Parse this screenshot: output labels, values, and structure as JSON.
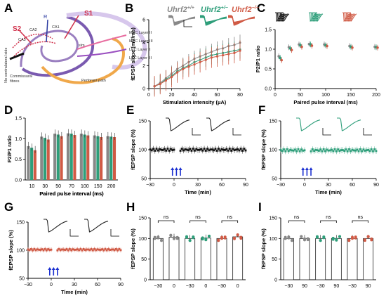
{
  "colors": {
    "wt": "#888888",
    "het": "#2e9e7a",
    "ko": "#d05a45",
    "hfs": "#1a2fd0",
    "black": "#111111"
  },
  "panel_a": {
    "label": "A",
    "labels": {
      "s1": "S1",
      "s2": "S2",
      "r": "R",
      "ca1": "CA1",
      "ca2": "CA2",
      "ca3": "CA3",
      "mec2": "MEC Layer II",
      "mec3": "MEC Layer III",
      "lec2": "LEC Layer II",
      "lec3": "LEC Layer III",
      "slm": "slm",
      "pp": "Perforant path",
      "comm1": "Commissural",
      "comm2": "fibres",
      "contra": "No contralateral side"
    }
  },
  "panel_b": {
    "label": "B",
    "legend": [
      {
        "base": "Uhrf2",
        "sup": "+/+",
        "color": "#888888"
      },
      {
        "base": "Uhrf2",
        "sup": "+/−",
        "color": "#2e9e7a"
      },
      {
        "base": "Uhrf2",
        "sup": "−/−",
        "color": "#d05a45"
      }
    ]
  },
  "panel_c": {
    "label": "C"
  },
  "panel_d": {
    "label": "D"
  },
  "panel_e": {
    "label": "E"
  },
  "panel_f": {
    "label": "F"
  },
  "panel_g": {
    "label": "G"
  },
  "panel_h": {
    "label": "H"
  },
  "panel_i": {
    "label": "I"
  },
  "chart_data": [
    {
      "panel": "B",
      "type": "line",
      "xlabel": "Stimulation intensity (µA)",
      "ylabel": "fEPSP slope (mV/ms)",
      "xlim": [
        0,
        80
      ],
      "ylim": [
        0,
        6
      ],
      "xticks": [
        0,
        20,
        40,
        60,
        80
      ],
      "yticks": [
        0,
        2,
        4,
        6
      ],
      "x": [
        5,
        10,
        15,
        20,
        25,
        30,
        35,
        40,
        45,
        50,
        55,
        60,
        65,
        70,
        75,
        80
      ],
      "series": [
        {
          "key": "wt",
          "values": [
            0.2,
            0.5,
            0.9,
            1.3,
            1.7,
            2.0,
            2.3,
            2.6,
            2.8,
            3.0,
            3.2,
            3.4,
            3.5,
            3.7,
            3.8,
            4.0
          ],
          "err": 0.7
        },
        {
          "key": "het",
          "values": [
            0.2,
            0.4,
            0.8,
            1.1,
            1.5,
            1.8,
            2.0,
            2.3,
            2.5,
            2.7,
            2.9,
            3.0,
            3.1,
            3.2,
            3.3,
            3.4
          ],
          "err": 0.8
        },
        {
          "key": "ko",
          "values": [
            0.2,
            0.4,
            0.7,
            1.0,
            1.4,
            1.7,
            1.9,
            2.1,
            2.3,
            2.5,
            2.7,
            2.8,
            2.9,
            3.0,
            3.1,
            3.3
          ],
          "err": 0.9
        }
      ]
    },
    {
      "panel": "C",
      "type": "scatter",
      "xlabel": "Paired pulse interval (ms)",
      "ylabel": "P2/P1 ratio",
      "xlim": [
        0,
        200
      ],
      "ylim": [
        0,
        1.5
      ],
      "xticks": [
        0,
        50,
        100,
        150,
        200
      ],
      "yticks": [
        0.0,
        0.5,
        1.0,
        1.5
      ],
      "x": [
        10,
        30,
        50,
        70,
        100,
        150,
        200
      ],
      "series": [
        {
          "key": "wt",
          "values": [
            0.82,
            1.05,
            1.12,
            1.13,
            1.12,
            1.08,
            1.06
          ]
        },
        {
          "key": "het",
          "values": [
            0.78,
            1.02,
            1.1,
            1.12,
            1.1,
            1.06,
            1.05
          ]
        },
        {
          "key": "ko",
          "values": [
            0.72,
            0.98,
            1.06,
            1.09,
            1.08,
            1.04,
            1.04
          ]
        }
      ]
    },
    {
      "panel": "D",
      "type": "bar",
      "xlabel": "Paired pulse interval (ms)",
      "ylabel": "P2/P1 ratio",
      "ylim": [
        0,
        1.5
      ],
      "yticks": [
        0.0,
        0.5,
        1.0,
        1.5
      ],
      "categories": [
        "10",
        "30",
        "50",
        "70",
        "100",
        "150",
        "200"
      ],
      "series": [
        {
          "key": "wt",
          "values": [
            0.82,
            1.05,
            1.12,
            1.13,
            1.12,
            1.08,
            1.06
          ]
        },
        {
          "key": "het",
          "values": [
            0.78,
            1.02,
            1.1,
            1.12,
            1.1,
            1.06,
            1.05
          ]
        },
        {
          "key": "ko",
          "values": [
            0.72,
            0.98,
            1.06,
            1.09,
            1.08,
            1.04,
            1.04
          ]
        }
      ]
    },
    {
      "panel": "E",
      "type": "scatter",
      "series_key": "black",
      "xlabel": "Time (min)",
      "ylabel": "fEPSP slope (%)",
      "xlim": [
        -30,
        90
      ],
      "ylim": [
        50,
        150
      ],
      "xticks": [
        -30,
        0,
        30,
        60,
        90
      ],
      "yticks": [
        50,
        100,
        150
      ],
      "mean": 100,
      "amp": 3,
      "err": 5
    },
    {
      "panel": "F",
      "type": "scatter",
      "series_key": "het",
      "xlabel": "Time (min)",
      "ylabel": "fEPSP slope (%)",
      "xlim": [
        -30,
        90
      ],
      "ylim": [
        50,
        150
      ],
      "xticks": [
        -30,
        0,
        30,
        60,
        90
      ],
      "yticks": [
        50,
        100,
        150
      ],
      "mean": 99,
      "amp": 3,
      "err": 5
    },
    {
      "panel": "G",
      "type": "scatter",
      "series_key": "ko",
      "xlabel": "Time (min)",
      "ylabel": "fEPSP slope (%)",
      "xlim": [
        -30,
        90
      ],
      "ylim": [
        50,
        150
      ],
      "xticks": [
        -30,
        0,
        30,
        60,
        90
      ],
      "yticks": [
        50,
        100,
        150
      ],
      "mean": 101,
      "amp": 2,
      "err": 4
    },
    {
      "panel": "H",
      "type": "bar",
      "xlabel": "",
      "ylabel": "fEPSP slope (%)",
      "ylim": [
        0,
        150
      ],
      "yticks": [
        0,
        50,
        100,
        150
      ],
      "categories": [
        "−30",
        "0",
        "−30",
        "0",
        "−30",
        "0"
      ],
      "groups": [
        "wt",
        "het",
        "ko"
      ],
      "values": [
        100,
        103,
        100,
        101,
        100,
        104
      ],
      "sig": [
        "ns",
        "ns",
        "ns"
      ]
    },
    {
      "panel": "I",
      "type": "bar",
      "xlabel": "",
      "ylabel": "fEPSP slope (%)",
      "ylim": [
        0,
        150
      ],
      "yticks": [
        0,
        50,
        100,
        150
      ],
      "categories": [
        "−30",
        "90",
        "−30",
        "90",
        "−30",
        "90"
      ],
      "groups": [
        "wt",
        "het",
        "ko"
      ],
      "values": [
        100,
        100,
        100,
        100,
        100,
        100
      ],
      "sig": [
        "ns",
        "ns",
        "ns"
      ]
    }
  ]
}
